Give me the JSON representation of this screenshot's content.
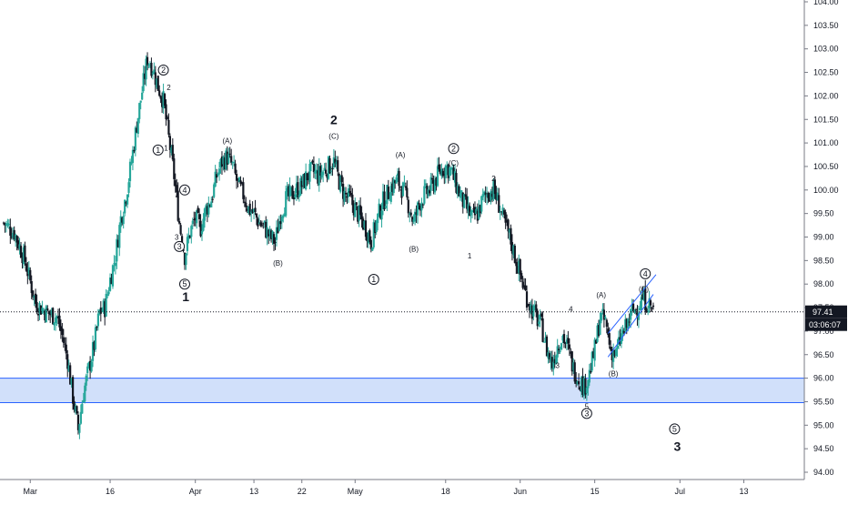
{
  "chart_data": {
    "type": "candlestick",
    "title": "",
    "xlabel": "",
    "ylabel": "",
    "ylim": [
      93.8,
      104.1
    ],
    "y_ticks": [
      "94.00",
      "94.50",
      "95.00",
      "95.50",
      "96.00",
      "96.50",
      "97.00",
      "97.50",
      "98.00",
      "98.50",
      "99.00",
      "99.50",
      "100.00",
      "100.50",
      "101.00",
      "101.50",
      "102.00",
      "102.50",
      "103.00",
      "103.50",
      "104.00"
    ],
    "x_ticks": [
      {
        "label": "Mar",
        "x": 5
      },
      {
        "label": "16",
        "x": 20
      },
      {
        "label": "Apr",
        "x": 36
      },
      {
        "label": "13",
        "x": 47
      },
      {
        "label": "22",
        "x": 56
      },
      {
        "label": "May",
        "x": 66
      },
      {
        "label": "18",
        "x": 83
      },
      {
        "label": "Jun",
        "x": 97
      },
      {
        "label": "15",
        "x": 111
      },
      {
        "label": "Jul",
        "x": 127
      },
      {
        "label": "13",
        "x": 139
      }
    ],
    "x_range": [
      0,
      145
    ],
    "up_color": "#26a69a",
    "down_color": "#131722",
    "current_price_label": "97.41",
    "current_price": 97.41,
    "countdown_label": "03:06:07",
    "support_zone": [
      95.48,
      96.0
    ],
    "channel_lines": [
      {
        "x1": 113.5,
        "y1": 96.45,
        "x2": 122,
        "y2": 97.78
      },
      {
        "x1": 113.5,
        "y1": 96.95,
        "x2": 122.5,
        "y2": 98.2
      }
    ],
    "wave_labels": [
      {
        "text": "2",
        "x": 30,
        "y": 102.55,
        "circled": true
      },
      {
        "text": "2",
        "x": 31,
        "y": 102.18,
        "circled": false
      },
      {
        "text": "1",
        "x": 29,
        "y": 100.85,
        "circled": true
      },
      {
        "text": "1",
        "x": 30.5,
        "y": 100.9,
        "circled": false
      },
      {
        "text": "4",
        "x": 34,
        "y": 100.0,
        "circled": true
      },
      {
        "text": "4",
        "x": 32.6,
        "y": 99.88,
        "circled": false
      },
      {
        "text": "3",
        "x": 32.5,
        "y": 99.0,
        "circled": false
      },
      {
        "text": "3",
        "x": 33,
        "y": 98.8,
        "circled": true
      },
      {
        "text": "5",
        "x": 34,
        "y": 98.0,
        "circled": true
      },
      {
        "text": "1",
        "x": 34.2,
        "y": 97.73,
        "circled": false,
        "bold": true
      },
      {
        "text": "(A)",
        "x": 42,
        "y": 101.05,
        "circled": false
      },
      {
        "text": "(B)",
        "x": 51.5,
        "y": 98.45,
        "circled": false
      },
      {
        "text": "2",
        "x": 62,
        "y": 101.5,
        "circled": false,
        "bold": true
      },
      {
        "text": "(C)",
        "x": 62,
        "y": 101.15,
        "circled": false
      },
      {
        "text": "1",
        "x": 69.5,
        "y": 98.1,
        "circled": true
      },
      {
        "text": "(A)",
        "x": 74.5,
        "y": 100.75,
        "circled": false
      },
      {
        "text": "(B)",
        "x": 77,
        "y": 98.75,
        "circled": false
      },
      {
        "text": "2",
        "x": 84.5,
        "y": 100.88,
        "circled": true
      },
      {
        "text": "(C)",
        "x": 84.5,
        "y": 100.58,
        "circled": false
      },
      {
        "text": "2",
        "x": 92,
        "y": 100.25,
        "circled": false
      },
      {
        "text": "1",
        "x": 87.5,
        "y": 98.6,
        "circled": false
      },
      {
        "text": "4",
        "x": 106.5,
        "y": 97.47,
        "circled": false
      },
      {
        "text": "3",
        "x": 104,
        "y": 96.27,
        "circled": false
      },
      {
        "text": "5",
        "x": 109.5,
        "y": 95.4,
        "circled": false
      },
      {
        "text": "3",
        "x": 109.5,
        "y": 95.25,
        "circled": true
      },
      {
        "text": "(A)",
        "x": 112.2,
        "y": 97.77,
        "circled": false
      },
      {
        "text": "(B)",
        "x": 114.5,
        "y": 96.1,
        "circled": false
      },
      {
        "text": "4",
        "x": 120.5,
        "y": 98.22,
        "circled": true
      },
      {
        "text": "(C)",
        "x": 120.2,
        "y": 97.9,
        "circled": false
      },
      {
        "text": "5",
        "x": 126,
        "y": 94.92,
        "circled": true
      },
      {
        "text": "3",
        "x": 126.5,
        "y": 94.55,
        "circled": false,
        "bold": true
      }
    ],
    "anchors": [
      [
        0,
        99.3
      ],
      [
        2,
        99.1
      ],
      [
        4,
        98.5
      ],
      [
        6,
        97.6
      ],
      [
        8,
        97.4
      ],
      [
        10,
        97.3
      ],
      [
        11,
        96.9
      ],
      [
        12,
        96.4
      ],
      [
        13,
        95.6
      ],
      [
        14,
        94.9
      ],
      [
        15,
        95.7
      ],
      [
        16,
        96.2
      ],
      [
        17,
        96.7
      ],
      [
        18,
        97.4
      ],
      [
        19,
        97.5
      ],
      [
        20,
        98.1
      ],
      [
        21,
        98.6
      ],
      [
        22,
        99.4
      ],
      [
        23,
        99.9
      ],
      [
        24,
        100.6
      ],
      [
        25,
        101.4
      ],
      [
        26,
        102.1
      ],
      [
        27,
        102.8
      ],
      [
        28,
        102.6
      ],
      [
        29,
        102.2
      ],
      [
        30,
        101.9
      ],
      [
        31,
        101.1
      ],
      [
        32,
        100.3
      ],
      [
        33,
        99.3
      ],
      [
        34,
        98.6
      ],
      [
        35,
        99.1
      ],
      [
        36,
        99.4
      ],
      [
        37,
        99.2
      ],
      [
        38,
        99.6
      ],
      [
        39,
        99.8
      ],
      [
        40,
        100.3
      ],
      [
        41,
        100.6
      ],
      [
        42,
        100.7
      ],
      [
        43,
        100.5
      ],
      [
        44,
        100.1
      ],
      [
        45,
        99.9
      ],
      [
        46,
        99.6
      ],
      [
        47,
        99.5
      ],
      [
        48,
        99.3
      ],
      [
        49,
        99.2
      ],
      [
        50,
        99.0
      ],
      [
        51,
        98.9
      ],
      [
        52,
        99.5
      ],
      [
        53,
        99.8
      ],
      [
        54,
        99.9
      ],
      [
        55,
        100.0
      ],
      [
        56,
        100.1
      ],
      [
        57,
        100.3
      ],
      [
        58,
        100.4
      ],
      [
        59,
        100.3
      ],
      [
        60,
        100.4
      ],
      [
        61,
        100.5
      ],
      [
        62,
        100.6
      ],
      [
        63,
        100.2
      ],
      [
        64,
        99.9
      ],
      [
        65,
        99.8
      ],
      [
        66,
        99.6
      ],
      [
        67,
        99.4
      ],
      [
        68,
        99.2
      ],
      [
        69,
        98.9
      ],
      [
        70,
        99.3
      ],
      [
        71,
        99.7
      ],
      [
        72,
        99.9
      ],
      [
        73,
        100.1
      ],
      [
        74,
        100.2
      ],
      [
        75,
        100.0
      ],
      [
        76,
        99.7
      ],
      [
        77,
        99.3
      ],
      [
        78,
        99.7
      ],
      [
        79,
        99.9
      ],
      [
        80,
        100.0
      ],
      [
        81,
        100.2
      ],
      [
        82,
        100.4
      ],
      [
        83,
        100.5
      ],
      [
        84,
        100.4
      ],
      [
        85,
        100.1
      ],
      [
        86,
        99.8
      ],
      [
        87,
        99.6
      ],
      [
        88,
        99.4
      ],
      [
        89,
        99.5
      ],
      [
        90,
        99.8
      ],
      [
        91,
        99.95
      ],
      [
        92,
        100.0
      ],
      [
        93,
        99.7
      ],
      [
        94,
        99.3
      ],
      [
        95,
        99.0
      ],
      [
        96,
        98.6
      ],
      [
        97,
        98.2
      ],
      [
        98,
        97.8
      ],
      [
        99,
        97.5
      ],
      [
        100,
        97.3
      ],
      [
        101,
        97.1
      ],
      [
        102,
        96.6
      ],
      [
        103,
        96.3
      ],
      [
        104,
        96.7
      ],
      [
        105,
        96.9
      ],
      [
        106,
        96.6
      ],
      [
        107,
        96.2
      ],
      [
        108,
        96.0
      ],
      [
        109,
        95.8
      ],
      [
        110,
        96.1
      ],
      [
        111,
        96.6
      ],
      [
        112,
        97.3
      ],
      [
        113,
        97.2
      ],
      [
        114,
        96.6
      ],
      [
        115,
        96.5
      ],
      [
        116,
        96.9
      ],
      [
        117,
        97.1
      ],
      [
        118,
        97.4
      ],
      [
        119,
        97.5
      ],
      [
        120,
        97.7
      ],
      [
        121,
        97.6
      ],
      [
        122,
        97.45
      ]
    ]
  }
}
